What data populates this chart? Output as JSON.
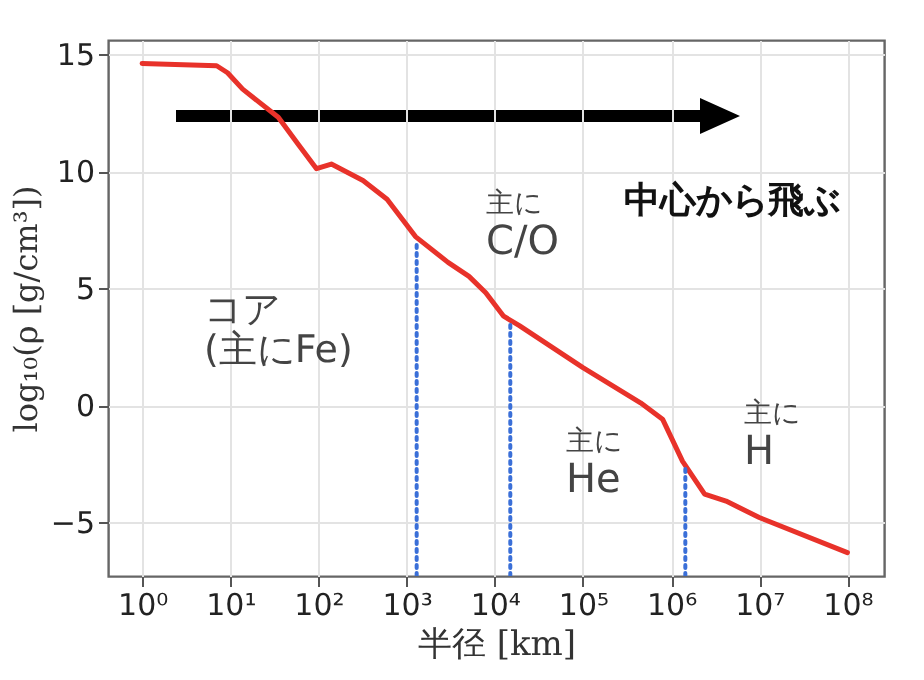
{
  "chart_data": {
    "type": "line",
    "xlabel": "半径 [km]",
    "ylabel": "log₁₀(ρ [g/cm³])",
    "log": "x",
    "xlim": [
      0.41,
      260000000
    ],
    "ylim": [
      -7.3,
      15.6
    ],
    "xticks": [
      {
        "value": 1,
        "label": "10⁰"
      },
      {
        "value": 10,
        "label": "10¹"
      },
      {
        "value": 100,
        "label": "10²"
      },
      {
        "value": 1000,
        "label": "10³"
      },
      {
        "value": 10000,
        "label": "10⁴"
      },
      {
        "value": 100000,
        "label": "10⁵"
      },
      {
        "value": 1000000,
        "label": "10⁶"
      },
      {
        "value": 10000000,
        "label": "10⁷"
      },
      {
        "value": 100000000,
        "label": "10⁸"
      }
    ],
    "yticks": [
      {
        "value": -5,
        "label": "−5"
      },
      0,
      5,
      10,
      15
    ],
    "grid": true,
    "series": [
      {
        "color": "#e8322a",
        "line_style": "solid",
        "x": [
          1,
          7,
          9.3,
          13.8,
          35,
          60,
          95,
          140,
          320,
          600,
          1260,
          2950,
          5100,
          7900,
          12600,
          19000,
          100000,
          450000,
          800000,
          1350000,
          2400000,
          4200000,
          10000000,
          100000000
        ],
        "values": [
          14.6,
          14.5,
          14.2,
          13.5,
          12.3,
          11.1,
          10.1,
          10.3,
          9.6,
          8.8,
          7.2,
          6.1,
          5.5,
          4.8,
          3.8,
          3.4,
          1.6,
          0.1,
          -0.6,
          -2.4,
          -3.8,
          -4.1,
          -4.8,
          -6.3
        ]
      },
      {
        "color": "#3a6fd8",
        "line_style": "dotted",
        "x": [
          1300,
          1300
        ],
        "values": [
          -7.3,
          7.0
        ]
      },
      {
        "color": "#3a6fd8",
        "line_style": "dotted",
        "x": [
          15000,
          15000
        ],
        "values": [
          -7.3,
          3.5
        ]
      },
      {
        "color": "#3a6fd8",
        "line_style": "dotted",
        "x": [
          1450000,
          1450000
        ],
        "values": [
          -7.3,
          -2.7
        ]
      }
    ],
    "annotations": [
      "中心から飛ぶ",
      "主に\nC/O",
      "コア\n(主にFe)",
      "主に\nHe",
      "主に\nH"
    ]
  }
}
